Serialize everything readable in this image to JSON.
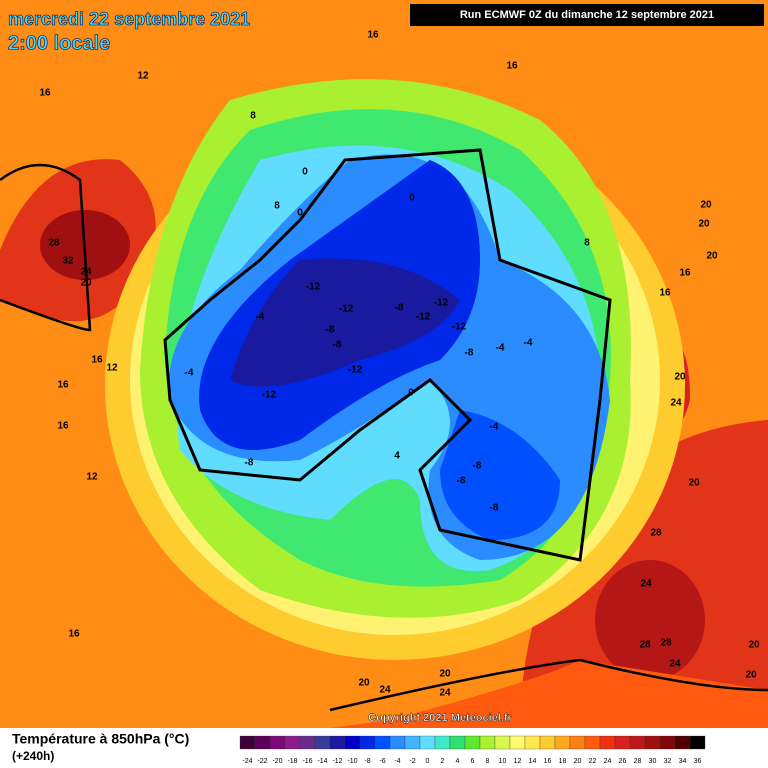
{
  "header": {
    "date": "mercredi 22 septembre 2021",
    "time": "2:00 locale",
    "run": "Run ECMWF 0Z du dimanche 12 septembre 2021"
  },
  "footer": {
    "copyright": "Copyright 2021 Meteociel.fr",
    "title": "Température à 850hPa (°C)",
    "subtitle": "(+240h)"
  },
  "legend": {
    "labels": [
      -24,
      -22,
      -20,
      -18,
      -16,
      -14,
      -12,
      -10,
      -8,
      -6,
      -4,
      -2,
      0,
      2,
      4,
      6,
      8,
      10,
      12,
      14,
      16,
      18,
      20,
      22,
      24,
      26,
      28,
      30,
      32,
      34,
      36
    ],
    "colors": [
      "#3d0039",
      "#5a005a",
      "#7a0a7a",
      "#8c1a8c",
      "#6a2a8a",
      "#3a3a9a",
      "#1a1aa0",
      "#0000c8",
      "#0028e8",
      "#0050ff",
      "#2a8cff",
      "#40b4ff",
      "#60dcff",
      "#40e8c8",
      "#30e070",
      "#60e830",
      "#a8f030",
      "#d8f850",
      "#fffa70",
      "#ffe850",
      "#ffcc30",
      "#ffa820",
      "#ff8010",
      "#ff5a10",
      "#f03010",
      "#d82020",
      "#c01818",
      "#a01010",
      "#800808",
      "#500000",
      "#000000"
    ]
  },
  "contour_labels": [
    16,
    12,
    16,
    16,
    8,
    0,
    8,
    0,
    0,
    28,
    32,
    24,
    20,
    8,
    20,
    20,
    20,
    16,
    16,
    -12,
    -12,
    -8,
    -12,
    -12,
    -12,
    -4,
    -8,
    -8,
    -8,
    -4,
    -4,
    -12,
    -4,
    16,
    12,
    16,
    0,
    -12,
    20,
    24,
    16,
    -4,
    -8,
    4,
    -8,
    -8,
    -8,
    12,
    20,
    28,
    24,
    16,
    28,
    28,
    24,
    20,
    20,
    20,
    20,
    24,
    24
  ]
}
